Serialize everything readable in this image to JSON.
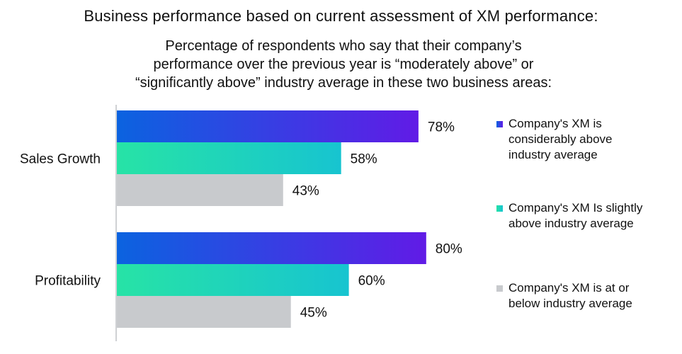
{
  "chart_data": {
    "type": "bar",
    "orientation": "horizontal",
    "title": "Business performance based on current assessment of XM performance:",
    "subtitle_lines": [
      "Percentage of respondents who say that their company’s",
      "performance over the previous year is “moderately above” or",
      "“significantly above” industry average in these two business areas:"
    ],
    "categories": [
      "Sales Growth",
      "Profitability"
    ],
    "series": [
      {
        "name": "Company's XM is considerably above industry average",
        "legend_lines": [
          "Company's XM is",
          "considerably above",
          "industry average"
        ],
        "values": [
          78,
          80
        ],
        "labels": [
          "78%",
          "80%"
        ],
        "color_start": "#0b63e0",
        "color_end": "#611be6"
      },
      {
        "name": "Company's XM Is slightly above industry average",
        "legend_lines": [
          "Company's XM Is slightly",
          "above industry average"
        ],
        "values": [
          58,
          60
        ],
        "labels": [
          "58%",
          "60%"
        ],
        "color_start": "#27e3a6",
        "color_end": "#17c4d0"
      },
      {
        "name": "Company's XM is at or below industry average",
        "legend_lines": [
          "Company's XM is at or",
          "below industry average"
        ],
        "values": [
          43,
          45
        ],
        "labels": [
          "43%",
          "45%"
        ],
        "color_start": "#c8cacd",
        "color_end": "#c8cacd"
      }
    ],
    "xlim": [
      0,
      100
    ],
    "xlabel": "",
    "ylabel": "",
    "grid": false,
    "legend_position": "right"
  }
}
